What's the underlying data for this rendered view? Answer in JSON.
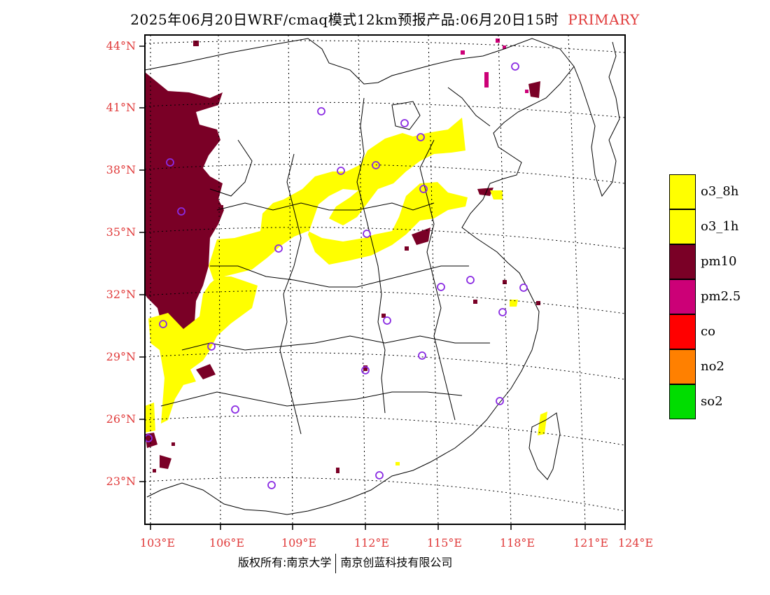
{
  "title": {
    "text": "2025年06月20日WRF/cmaq模式12km预报产品:06月20日15时",
    "tag": "PRIMARY"
  },
  "axes": {
    "latitudes": [
      "44°N",
      "41°N",
      "38°N",
      "35°N",
      "32°N",
      "29°N",
      "26°N",
      "23°N"
    ],
    "longitudes": [
      "103°E",
      "106°E",
      "109°E",
      "112°E",
      "115°E",
      "118°E",
      "121°E",
      "124°E"
    ]
  },
  "legend": [
    {
      "label": "o3_8h",
      "color": "#ffff00"
    },
    {
      "label": "o3_1h",
      "color": "#ffff00"
    },
    {
      "label": "pm10",
      "color": "#7a0026"
    },
    {
      "label": "pm2.5",
      "color": "#cc0077"
    },
    {
      "label": "co",
      "color": "#ff0000"
    },
    {
      "label": "no2",
      "color": "#ff8000"
    },
    {
      "label": "so2",
      "color": "#00dd00"
    }
  ],
  "footer": {
    "left": "版权所有:南京大学",
    "right": "南京创蓝科技有限公司"
  },
  "colors": {
    "o3": "#ffff00",
    "pm10": "#7a0026",
    "pm25": "#cc0077",
    "station": "#8a2be2",
    "axis_label": "#e03a3a"
  }
}
